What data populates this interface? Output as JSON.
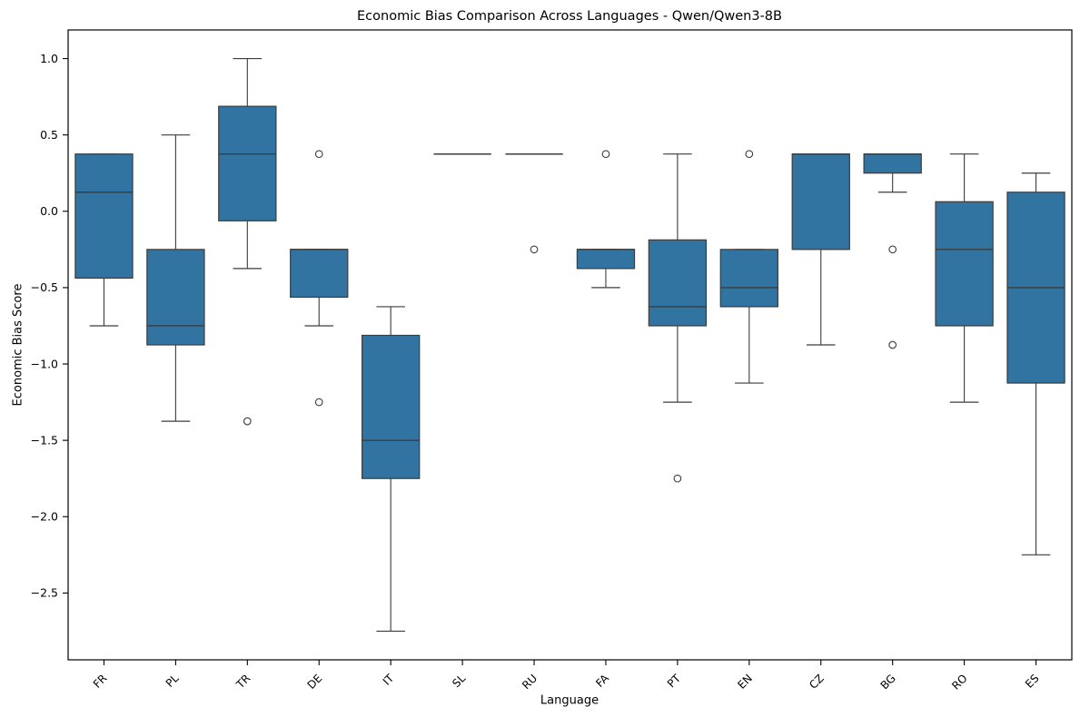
{
  "figure": {
    "title": "Economic Bias Comparison Across Languages - Qwen/Qwen3-8B",
    "xlabel": "Language",
    "ylabel": "Economic Bias Score"
  },
  "chart_data": {
    "type": "box",
    "title": "Economic Bias Comparison Across Languages - Qwen/Qwen3-8B",
    "xlabel": "Language",
    "ylabel": "Economic Bias Score",
    "grid": false,
    "legend": "none",
    "categories": [
      "FR",
      "PL",
      "TR",
      "DE",
      "IT",
      "SL",
      "RU",
      "FA",
      "PT",
      "EN",
      "CZ",
      "BG",
      "RO",
      "ES"
    ],
    "ytick_values": [
      1.0,
      0.5,
      0.0,
      -0.5,
      -1.0,
      -1.5,
      -2.0,
      -2.5
    ],
    "ytick_labels": [
      "1.0",
      "0.5",
      "0.0",
      "−0.5",
      "−1.0",
      "−1.5",
      "−2.0",
      "−2.5"
    ],
    "ylim": [
      -2.9375,
      1.1875
    ],
    "series": [
      {
        "label": "FR",
        "whislo": -0.75,
        "q1": -0.4375,
        "med": 0.125,
        "q3": 0.375,
        "whishi": 0.375,
        "fliers": []
      },
      {
        "label": "PL",
        "whislo": -1.375,
        "q1": -0.875,
        "med": -0.75,
        "q3": -0.25,
        "whishi": 0.5,
        "fliers": []
      },
      {
        "label": "TR",
        "whislo": -0.375,
        "q1": -0.0625,
        "med": 0.375,
        "q3": 0.6875,
        "whishi": 1.0,
        "fliers": [
          -1.375
        ]
      },
      {
        "label": "DE",
        "whislo": -0.75,
        "q1": -0.5625,
        "med": -0.25,
        "q3": -0.25,
        "whishi": -0.25,
        "fliers": [
          0.375,
          -1.25
        ]
      },
      {
        "label": "IT",
        "whislo": -2.75,
        "q1": -1.75,
        "med": -1.5,
        "q3": -0.8125,
        "whishi": -0.625,
        "fliers": []
      },
      {
        "label": "SL",
        "whislo": 0.375,
        "q1": 0.375,
        "med": 0.375,
        "q3": 0.375,
        "whishi": 0.375,
        "fliers": []
      },
      {
        "label": "RU",
        "whislo": 0.375,
        "q1": 0.375,
        "med": 0.375,
        "q3": 0.375,
        "whishi": 0.375,
        "fliers": [
          -0.25
        ]
      },
      {
        "label": "FA",
        "whislo": -0.5,
        "q1": -0.375,
        "med": -0.25,
        "q3": -0.25,
        "whishi": -0.25,
        "fliers": [
          0.375
        ]
      },
      {
        "label": "PT",
        "whislo": -1.25,
        "q1": -0.75,
        "med": -0.625,
        "q3": -0.1875,
        "whishi": 0.375,
        "fliers": [
          -1.75
        ]
      },
      {
        "label": "EN",
        "whislo": -1.125,
        "q1": -0.625,
        "med": -0.5,
        "q3": -0.25,
        "whishi": -0.25,
        "fliers": [
          0.375
        ]
      },
      {
        "label": "CZ",
        "whislo": -0.875,
        "q1": -0.25,
        "med": 0.375,
        "q3": 0.375,
        "whishi": 0.375,
        "fliers": []
      },
      {
        "label": "BG",
        "whislo": 0.125,
        "q1": 0.25,
        "med": 0.375,
        "q3": 0.375,
        "whishi": 0.375,
        "fliers": [
          -0.25,
          -0.875
        ]
      },
      {
        "label": "RO",
        "whislo": -1.25,
        "q1": -0.75,
        "med": -0.25,
        "q3": 0.0625,
        "whishi": 0.375,
        "fliers": []
      },
      {
        "label": "ES",
        "whislo": -2.25,
        "q1": -1.125,
        "med": -0.5,
        "q3": 0.125,
        "whishi": 0.25,
        "fliers": []
      }
    ],
    "colors": {
      "box_fill": "#3274A1",
      "box_edge": "#3C3C3C",
      "median": "#3C3C3C",
      "whisker": "#3C3C3C",
      "flier_edge": "#3C3C3C",
      "spine": "#000000",
      "background": "#ffffff"
    }
  }
}
